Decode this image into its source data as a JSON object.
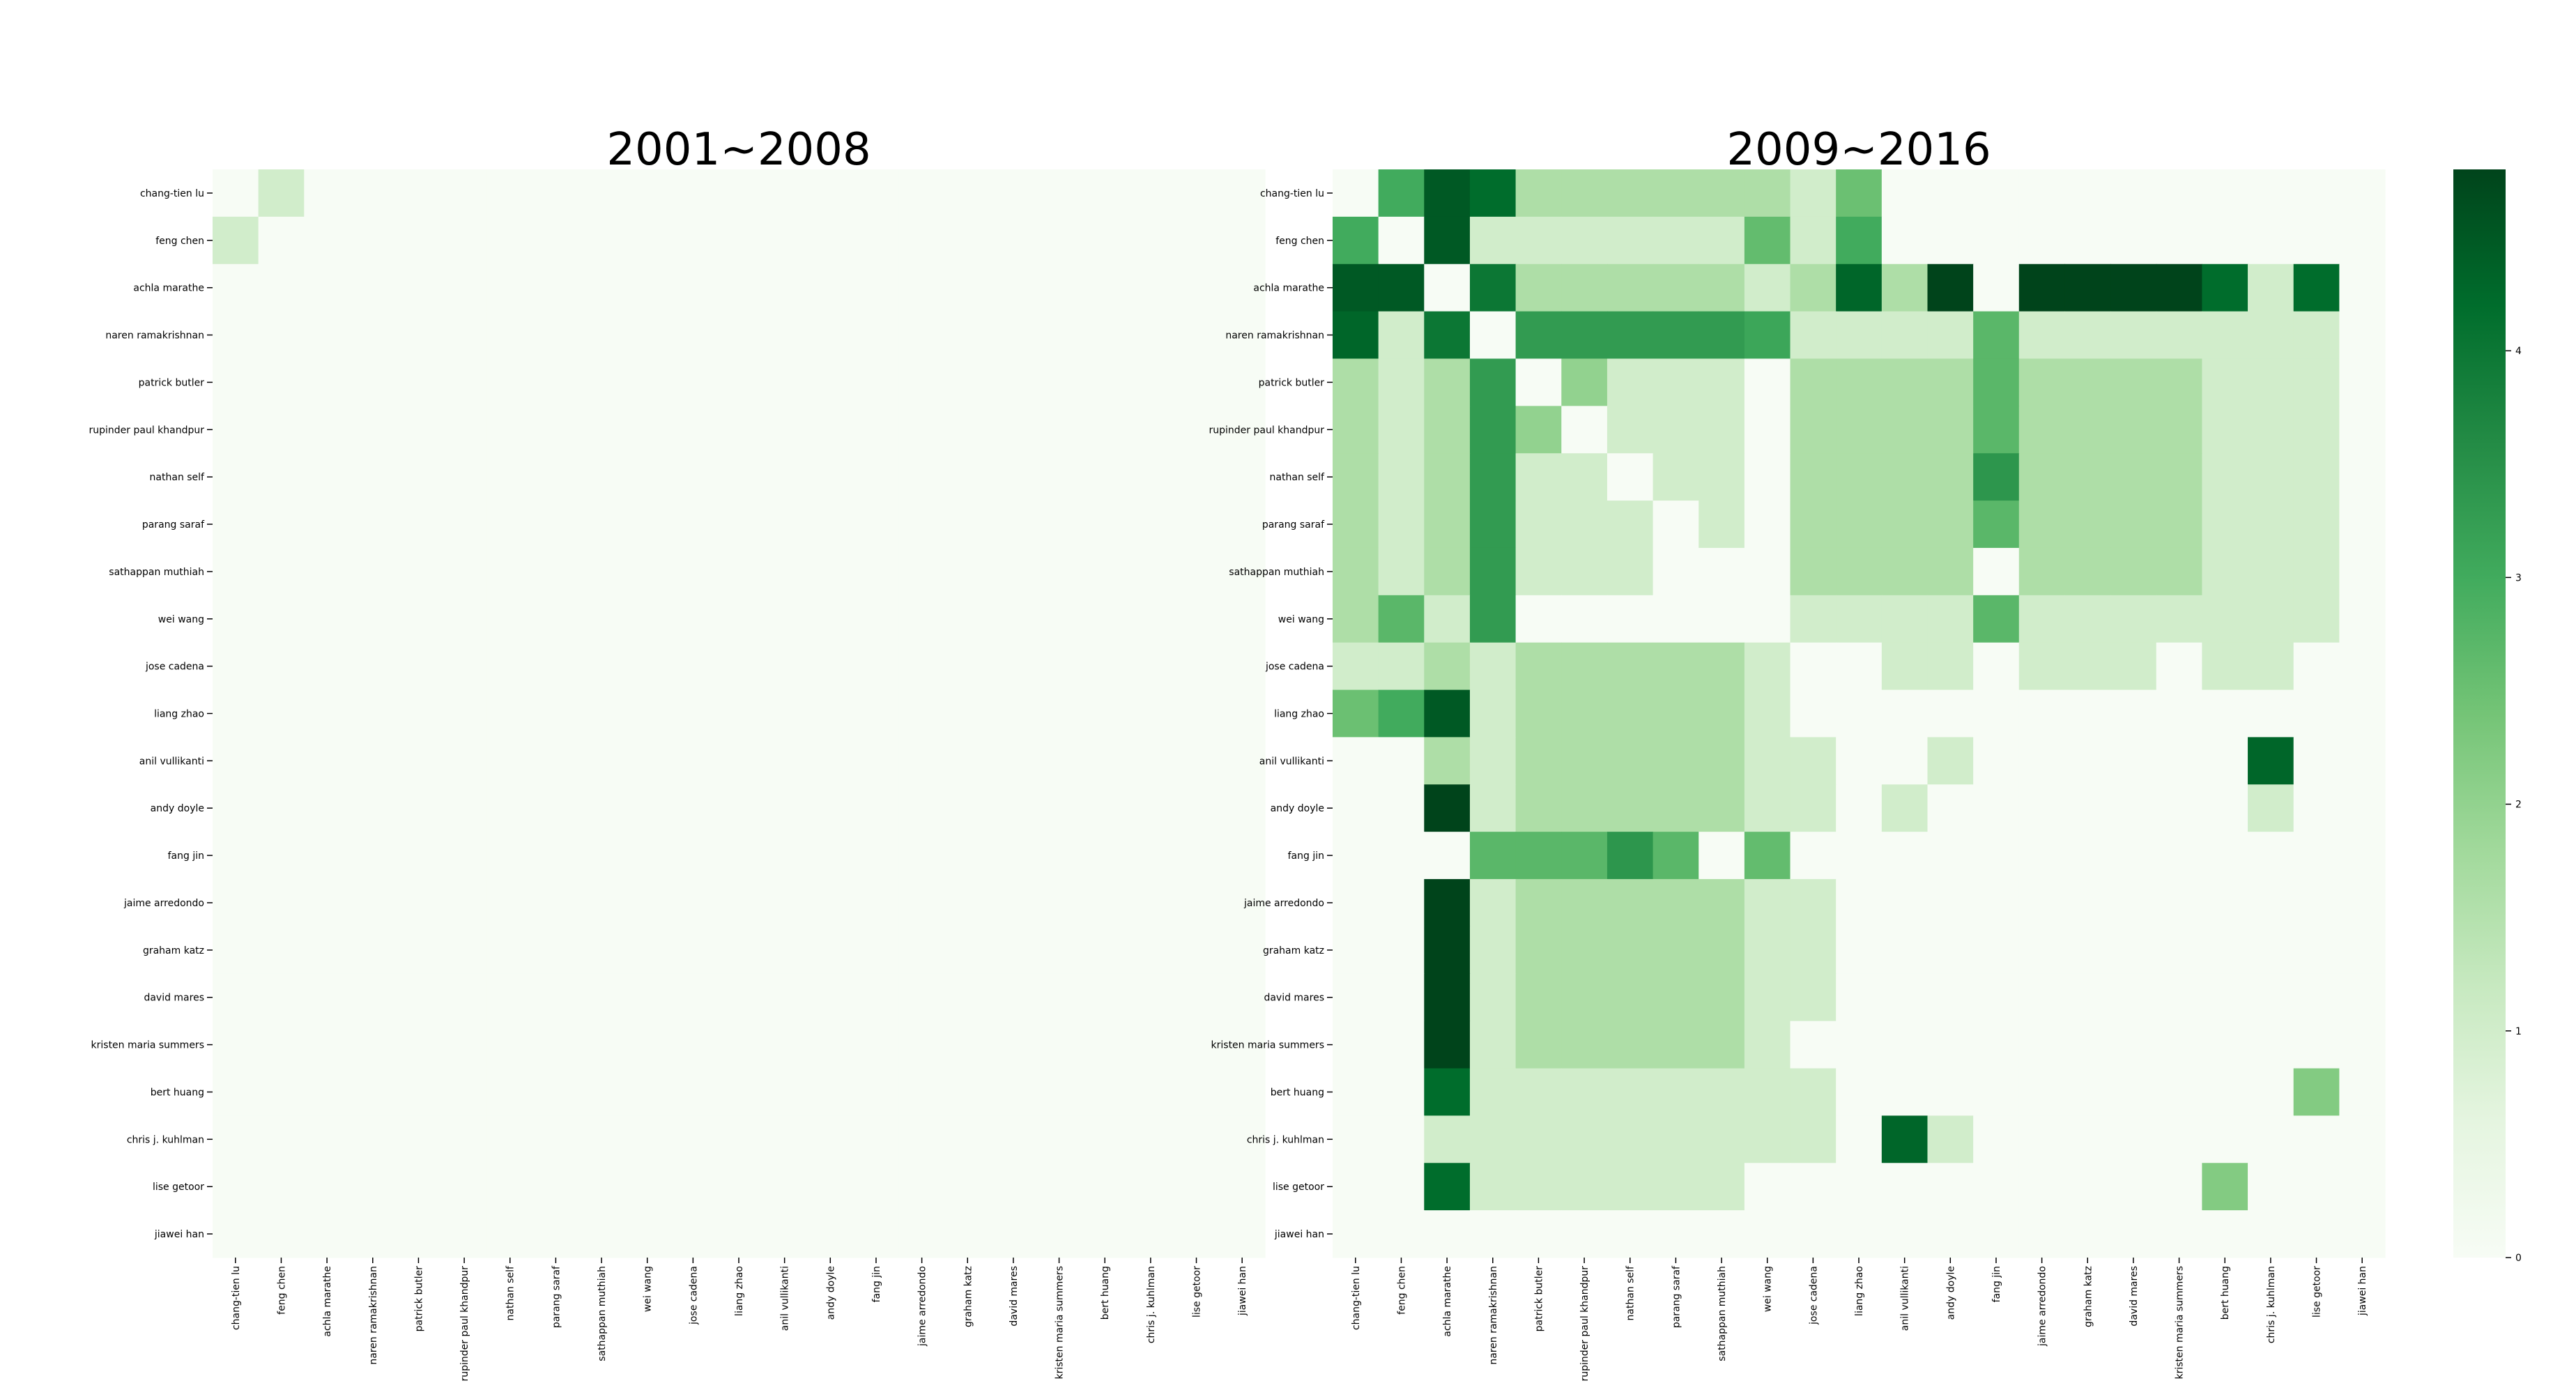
{
  "chart_data": [
    {
      "type": "heatmap",
      "title": "2001~2008",
      "labels": [
        "chang-tien lu",
        "feng chen",
        "achla marathe",
        "naren ramakrishnan",
        "patrick butler",
        "rupinder paul khandpur",
        "nathan self",
        "parang saraf",
        "sathappan muthiah",
        "wei wang",
        "jose cadena",
        "liang zhao",
        "anil vullikanti",
        "andy doyle",
        "fang jin",
        "jaime arredondo",
        "graham katz",
        "david mares",
        "kristen maria summers",
        "bert huang",
        "chris j. kuhlman",
        "lise getoor",
        "jiawei han"
      ],
      "matrix": [
        [
          0,
          1,
          0,
          0,
          0,
          0,
          0,
          0,
          0,
          0,
          0,
          0,
          0,
          0,
          0,
          0,
          0,
          0,
          0,
          0,
          0,
          0,
          0
        ],
        [
          1,
          0,
          0,
          0,
          0,
          0,
          0,
          0,
          0,
          0,
          0,
          0,
          0,
          0,
          0,
          0,
          0,
          0,
          0,
          0,
          0,
          0,
          0
        ],
        [
          0,
          0,
          0,
          0,
          0,
          0,
          0,
          0,
          0,
          0,
          0,
          0,
          0,
          0,
          0,
          0,
          0,
          0,
          0,
          0,
          0,
          0,
          0
        ],
        [
          0,
          0,
          0,
          0,
          0,
          0,
          0,
          0,
          0,
          0,
          0,
          0,
          0,
          0,
          0,
          0,
          0,
          0,
          0,
          0,
          0,
          0,
          0
        ],
        [
          0,
          0,
          0,
          0,
          0,
          0,
          0,
          0,
          0,
          0,
          0,
          0,
          0,
          0,
          0,
          0,
          0,
          0,
          0,
          0,
          0,
          0,
          0
        ],
        [
          0,
          0,
          0,
          0,
          0,
          0,
          0,
          0,
          0,
          0,
          0,
          0,
          0,
          0,
          0,
          0,
          0,
          0,
          0,
          0,
          0,
          0,
          0
        ],
        [
          0,
          0,
          0,
          0,
          0,
          0,
          0,
          0,
          0,
          0,
          0,
          0,
          0,
          0,
          0,
          0,
          0,
          0,
          0,
          0,
          0,
          0,
          0
        ],
        [
          0,
          0,
          0,
          0,
          0,
          0,
          0,
          0,
          0,
          0,
          0,
          0,
          0,
          0,
          0,
          0,
          0,
          0,
          0,
          0,
          0,
          0,
          0
        ],
        [
          0,
          0,
          0,
          0,
          0,
          0,
          0,
          0,
          0,
          0,
          0,
          0,
          0,
          0,
          0,
          0,
          0,
          0,
          0,
          0,
          0,
          0,
          0
        ],
        [
          0,
          0,
          0,
          0,
          0,
          0,
          0,
          0,
          0,
          0,
          0,
          0,
          0,
          0,
          0,
          0,
          0,
          0,
          0,
          0,
          0,
          0,
          0
        ],
        [
          0,
          0,
          0,
          0,
          0,
          0,
          0,
          0,
          0,
          0,
          0,
          0,
          0,
          0,
          0,
          0,
          0,
          0,
          0,
          0,
          0,
          0,
          0
        ],
        [
          0,
          0,
          0,
          0,
          0,
          0,
          0,
          0,
          0,
          0,
          0,
          0,
          0,
          0,
          0,
          0,
          0,
          0,
          0,
          0,
          0,
          0,
          0
        ],
        [
          0,
          0,
          0,
          0,
          0,
          0,
          0,
          0,
          0,
          0,
          0,
          0,
          0,
          0,
          0,
          0,
          0,
          0,
          0,
          0,
          0,
          0,
          0
        ],
        [
          0,
          0,
          0,
          0,
          0,
          0,
          0,
          0,
          0,
          0,
          0,
          0,
          0,
          0,
          0,
          0,
          0,
          0,
          0,
          0,
          0,
          0,
          0
        ],
        [
          0,
          0,
          0,
          0,
          0,
          0,
          0,
          0,
          0,
          0,
          0,
          0,
          0,
          0,
          0,
          0,
          0,
          0,
          0,
          0,
          0,
          0,
          0
        ],
        [
          0,
          0,
          0,
          0,
          0,
          0,
          0,
          0,
          0,
          0,
          0,
          0,
          0,
          0,
          0,
          0,
          0,
          0,
          0,
          0,
          0,
          0,
          0
        ],
        [
          0,
          0,
          0,
          0,
          0,
          0,
          0,
          0,
          0,
          0,
          0,
          0,
          0,
          0,
          0,
          0,
          0,
          0,
          0,
          0,
          0,
          0,
          0
        ],
        [
          0,
          0,
          0,
          0,
          0,
          0,
          0,
          0,
          0,
          0,
          0,
          0,
          0,
          0,
          0,
          0,
          0,
          0,
          0,
          0,
          0,
          0,
          0
        ],
        [
          0,
          0,
          0,
          0,
          0,
          0,
          0,
          0,
          0,
          0,
          0,
          0,
          0,
          0,
          0,
          0,
          0,
          0,
          0,
          0,
          0,
          0,
          0
        ],
        [
          0,
          0,
          0,
          0,
          0,
          0,
          0,
          0,
          0,
          0,
          0,
          0,
          0,
          0,
          0,
          0,
          0,
          0,
          0,
          0,
          0,
          0,
          0
        ],
        [
          0,
          0,
          0,
          0,
          0,
          0,
          0,
          0,
          0,
          0,
          0,
          0,
          0,
          0,
          0,
          0,
          0,
          0,
          0,
          0,
          0,
          0,
          0
        ],
        [
          0,
          0,
          0,
          0,
          0,
          0,
          0,
          0,
          0,
          0,
          0,
          0,
          0,
          0,
          0,
          0,
          0,
          0,
          0,
          0,
          0,
          0,
          0
        ],
        [
          0,
          0,
          0,
          0,
          0,
          0,
          0,
          0,
          0,
          0,
          0,
          0,
          0,
          0,
          0,
          0,
          0,
          0,
          0,
          0,
          0,
          0,
          0
        ]
      ]
    },
    {
      "type": "heatmap",
      "title": "2009~2016",
      "labels": [
        "chang-tien lu",
        "feng chen",
        "achla marathe",
        "naren ramakrishnan",
        "patrick butler",
        "rupinder paul khandpur",
        "nathan self",
        "parang saraf",
        "sathappan muthiah",
        "wei wang",
        "jose cadena",
        "liang zhao",
        "anil vullikanti",
        "andy doyle",
        "fang jin",
        "jaime arredondo",
        "graham katz",
        "david mares",
        "kristen maria summers",
        "bert huang",
        "chris j. kuhlman",
        "lise getoor",
        "jiawei han"
      ],
      "matrix": [
        [
          0,
          3,
          4.5,
          4.2,
          1.6,
          1.6,
          1.6,
          1.6,
          1.6,
          1.6,
          1,
          2.5,
          0,
          0,
          0,
          0,
          0,
          0,
          0,
          0,
          0,
          0,
          0
        ],
        [
          3,
          0,
          4.5,
          1,
          1,
          1,
          1,
          1,
          1,
          2.6,
          1,
          3,
          0,
          0,
          0,
          0,
          0,
          0,
          0,
          0,
          0,
          0,
          0
        ],
        [
          4.5,
          4.5,
          0,
          4,
          1.6,
          1.6,
          1.6,
          1.6,
          1.6,
          1,
          1.6,
          4.3,
          1.6,
          4.8,
          0,
          4.8,
          4.8,
          4.8,
          4.8,
          4.2,
          1,
          4.2,
          0
        ],
        [
          4.3,
          1,
          4,
          0,
          3.3,
          3.3,
          3.3,
          3.3,
          3.3,
          3.1,
          1,
          1,
          1,
          1,
          2.7,
          1,
          1,
          1,
          1,
          1,
          1,
          1,
          0
        ],
        [
          1.6,
          1,
          1.6,
          3.3,
          0,
          2,
          1,
          1,
          1,
          0,
          1.6,
          1.6,
          1.6,
          1.6,
          2.7,
          1.6,
          1.6,
          1.6,
          1.6,
          1,
          1,
          1,
          0
        ],
        [
          1.6,
          1,
          1.6,
          3.3,
          2,
          0,
          1,
          1,
          1,
          0,
          1.6,
          1.6,
          1.6,
          1.6,
          2.7,
          1.6,
          1.6,
          1.6,
          1.6,
          1,
          1,
          1,
          0
        ],
        [
          1.6,
          1,
          1.6,
          3.3,
          1,
          1,
          0,
          1,
          1,
          0,
          1.6,
          1.6,
          1.6,
          1.6,
          3.4,
          1.6,
          1.6,
          1.6,
          1.6,
          1,
          1,
          1,
          0
        ],
        [
          1.6,
          1,
          1.6,
          3.3,
          1,
          1,
          1,
          0,
          1,
          0,
          1.6,
          1.6,
          1.6,
          1.6,
          2.7,
          1.6,
          1.6,
          1.6,
          1.6,
          1,
          1,
          1,
          0
        ],
        [
          1.6,
          1,
          1.6,
          3.3,
          1,
          1,
          1,
          0,
          0,
          0,
          1.6,
          1.6,
          1.6,
          1.6,
          0,
          1.6,
          1.6,
          1.6,
          1.6,
          1,
          1,
          1,
          0
        ],
        [
          1.6,
          2.7,
          1,
          3.3,
          0,
          0,
          0,
          0,
          0,
          0,
          1,
          1,
          1,
          1,
          2.7,
          1,
          1,
          1,
          1,
          1,
          1,
          1,
          0
        ],
        [
          1,
          1,
          1.6,
          1,
          1.6,
          1.6,
          1.6,
          1.6,
          1.6,
          1,
          0,
          0,
          1,
          1,
          0,
          1,
          1,
          1,
          0,
          1,
          1,
          0,
          0
        ],
        [
          2.5,
          3,
          4.5,
          1,
          1.6,
          1.6,
          1.6,
          1.6,
          1.6,
          1,
          0,
          0,
          0,
          0,
          0,
          0,
          0,
          0,
          0,
          0,
          0,
          0,
          0
        ],
        [
          0,
          0,
          1.6,
          1,
          1.6,
          1.6,
          1.6,
          1.6,
          1.6,
          1,
          1,
          0,
          0,
          1,
          0,
          0,
          0,
          0,
          0,
          0,
          4.3,
          0,
          0
        ],
        [
          0,
          0,
          4.8,
          1,
          1.6,
          1.6,
          1.6,
          1.6,
          1.6,
          1,
          1,
          0,
          1,
          0,
          0,
          0,
          0,
          0,
          0,
          0,
          1,
          0,
          0
        ],
        [
          0,
          0,
          0,
          2.7,
          2.7,
          2.7,
          3.4,
          2.7,
          0,
          2.6,
          0,
          0,
          0,
          0,
          0,
          0,
          0,
          0,
          0,
          0,
          0,
          0,
          0
        ],
        [
          0,
          0,
          4.8,
          1,
          1.6,
          1.6,
          1.6,
          1.6,
          1.6,
          1,
          1,
          0,
          0,
          0,
          0,
          0,
          0,
          0,
          0,
          0,
          0,
          0,
          0
        ],
        [
          0,
          0,
          4.8,
          1,
          1.6,
          1.6,
          1.6,
          1.6,
          1.6,
          1,
          1,
          0,
          0,
          0,
          0,
          0,
          0,
          0,
          0,
          0,
          0,
          0,
          0
        ],
        [
          0,
          0,
          4.8,
          1,
          1.6,
          1.6,
          1.6,
          1.6,
          1.6,
          1,
          1,
          0,
          0,
          0,
          0,
          0,
          0,
          0,
          0,
          0,
          0,
          0,
          0
        ],
        [
          0,
          0,
          4.8,
          1,
          1.6,
          1.6,
          1.6,
          1.6,
          1.6,
          1,
          0,
          0,
          0,
          0,
          0,
          0,
          0,
          0,
          0,
          0,
          0,
          0,
          0
        ],
        [
          0,
          0,
          4.2,
          1,
          1,
          1,
          1,
          1,
          1,
          1,
          1,
          0,
          0,
          0,
          0,
          0,
          0,
          0,
          0,
          0,
          0,
          2.2,
          0
        ],
        [
          0,
          0,
          1,
          1,
          1,
          1,
          1,
          1,
          1,
          1,
          1,
          0,
          4.3,
          1,
          0,
          0,
          0,
          0,
          0,
          0,
          0,
          0,
          0
        ],
        [
          0,
          0,
          4.2,
          1,
          1,
          1,
          1,
          1,
          1,
          0,
          0,
          0,
          0,
          0,
          0,
          0,
          0,
          0,
          0,
          2.2,
          0,
          0,
          0
        ],
        [
          0,
          0,
          0,
          0,
          0,
          0,
          0,
          0,
          0,
          0,
          0,
          0,
          0,
          0,
          0,
          0,
          0,
          0,
          0,
          0,
          0,
          0,
          0
        ]
      ]
    }
  ],
  "colorbar": {
    "colormap": "Greens",
    "min": 0,
    "max": 4.8,
    "ticks": [
      "0",
      "1",
      "2",
      "3",
      "4"
    ],
    "colors": [
      "#f7fcf5",
      "#e5f5e0",
      "#c7e9c0",
      "#a1d99b",
      "#74c476",
      "#41ab5d",
      "#238b45",
      "#006d2c",
      "#00441b"
    ]
  }
}
